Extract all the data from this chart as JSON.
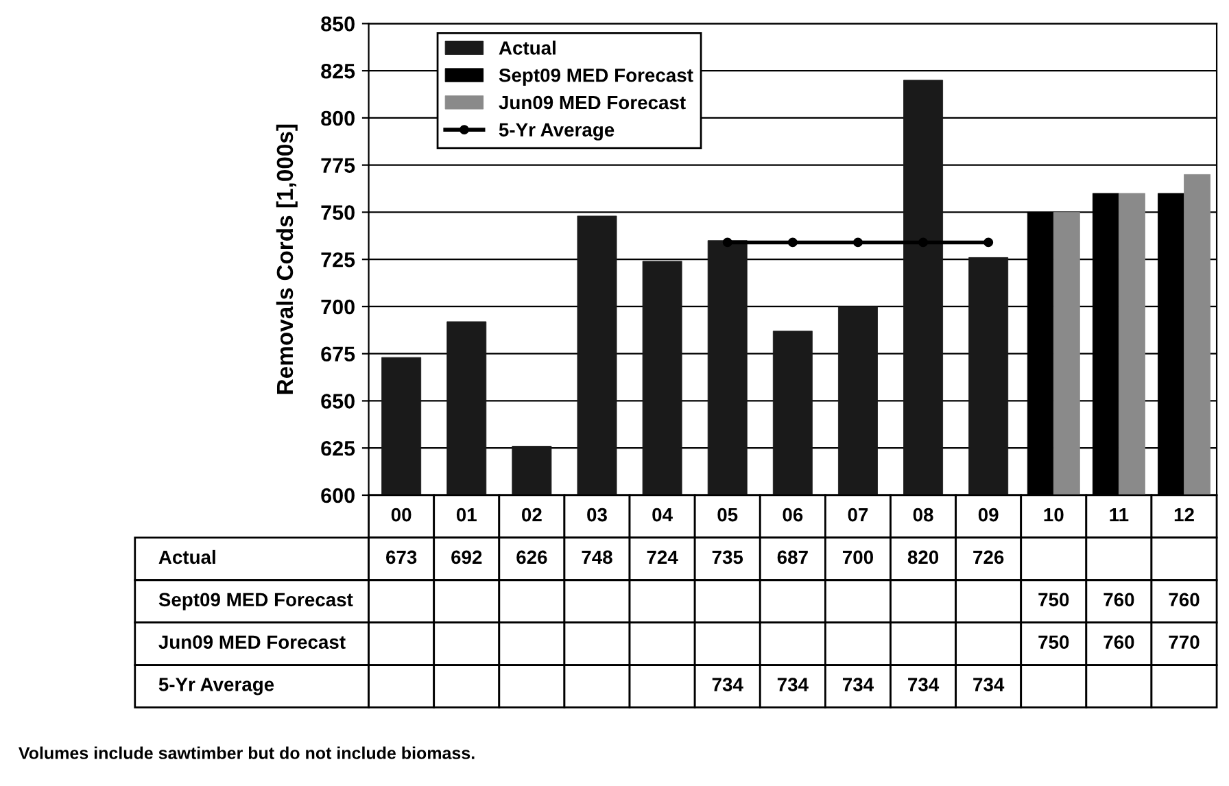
{
  "chart_data": {
    "type": "bar",
    "ylabel": "Removals Cords [1,000s]",
    "categories": [
      "00",
      "01",
      "02",
      "03",
      "04",
      "05",
      "06",
      "07",
      "08",
      "09",
      "10",
      "11",
      "12"
    ],
    "series": [
      {
        "name": "Actual",
        "color": "#1a1a1a",
        "values": [
          673,
          692,
          626,
          748,
          724,
          735,
          687,
          700,
          820,
          726,
          null,
          null,
          null
        ]
      },
      {
        "name": "Sept09 MED Forecast",
        "color": "#000000",
        "values": [
          null,
          null,
          null,
          null,
          null,
          null,
          null,
          null,
          null,
          null,
          750,
          760,
          760
        ]
      },
      {
        "name": "Jun09 MED Forecast",
        "color": "#8a8a8a",
        "values": [
          null,
          null,
          null,
          null,
          null,
          null,
          null,
          null,
          null,
          null,
          750,
          760,
          770
        ]
      },
      {
        "name": "5-Yr Average",
        "color": "#000000",
        "type": "line",
        "marker": "circle",
        "values": [
          null,
          null,
          null,
          null,
          null,
          734,
          734,
          734,
          734,
          734,
          null,
          null,
          null
        ]
      }
    ],
    "ylim": [
      600,
      850
    ],
    "yticks": [
      600,
      625,
      650,
      675,
      700,
      725,
      750,
      775,
      800,
      825,
      850
    ],
    "grid": "y",
    "legend": "top left",
    "data_labels": true,
    "annotations": [
      "Volumes include sawtimber but do not include biomass."
    ]
  }
}
